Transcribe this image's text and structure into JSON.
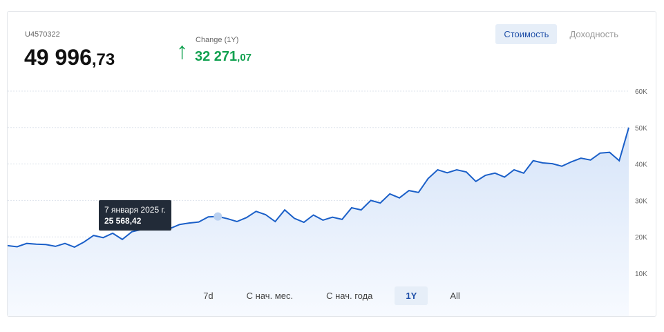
{
  "account": "U4570322",
  "total": {
    "int": "49 996",
    "dec": ",73"
  },
  "change": {
    "label": "Change (1Y)",
    "int": "32 271",
    "dec": ",07",
    "icon": "arrow-up-icon",
    "color": "#12a150"
  },
  "modes": [
    {
      "label": "Стоимость",
      "active": true
    },
    {
      "label": "Доходность",
      "active": false
    }
  ],
  "ranges": [
    {
      "label": "7d"
    },
    {
      "label": "С нач. мес."
    },
    {
      "label": "С нач. года"
    },
    {
      "label": "1Y",
      "active": true
    },
    {
      "label": "All"
    }
  ],
  "tooltip": {
    "date": "7 января 2025 г.",
    "value": "25 568,42"
  },
  "chart_data": {
    "type": "area",
    "y_ticks": [
      "10K",
      "20K",
      "30K",
      "40K",
      "50K",
      "60K"
    ],
    "ylim": [
      10000,
      60000
    ],
    "grid": true,
    "line_color": "#1a5fc8",
    "values": [
      17600,
      17300,
      18200,
      18000,
      17900,
      17400,
      18200,
      17200,
      18600,
      20400,
      19800,
      21000,
      19300,
      21400,
      22000,
      23000,
      22100,
      22300,
      23400,
      23800,
      24100,
      25500,
      25600,
      25000,
      24200,
      25300,
      27000,
      26100,
      24200,
      27400,
      25100,
      24000,
      26000,
      24600,
      25400,
      24800,
      28000,
      27400,
      30000,
      29300,
      31800,
      30700,
      32700,
      32200,
      36000,
      38400,
      37600,
      38400,
      37800,
      35200,
      36900,
      37500,
      36400,
      38400,
      37500,
      40900,
      40300,
      40100,
      39400,
      40600,
      41600,
      41100,
      43000,
      43200,
      40900,
      50000
    ]
  }
}
